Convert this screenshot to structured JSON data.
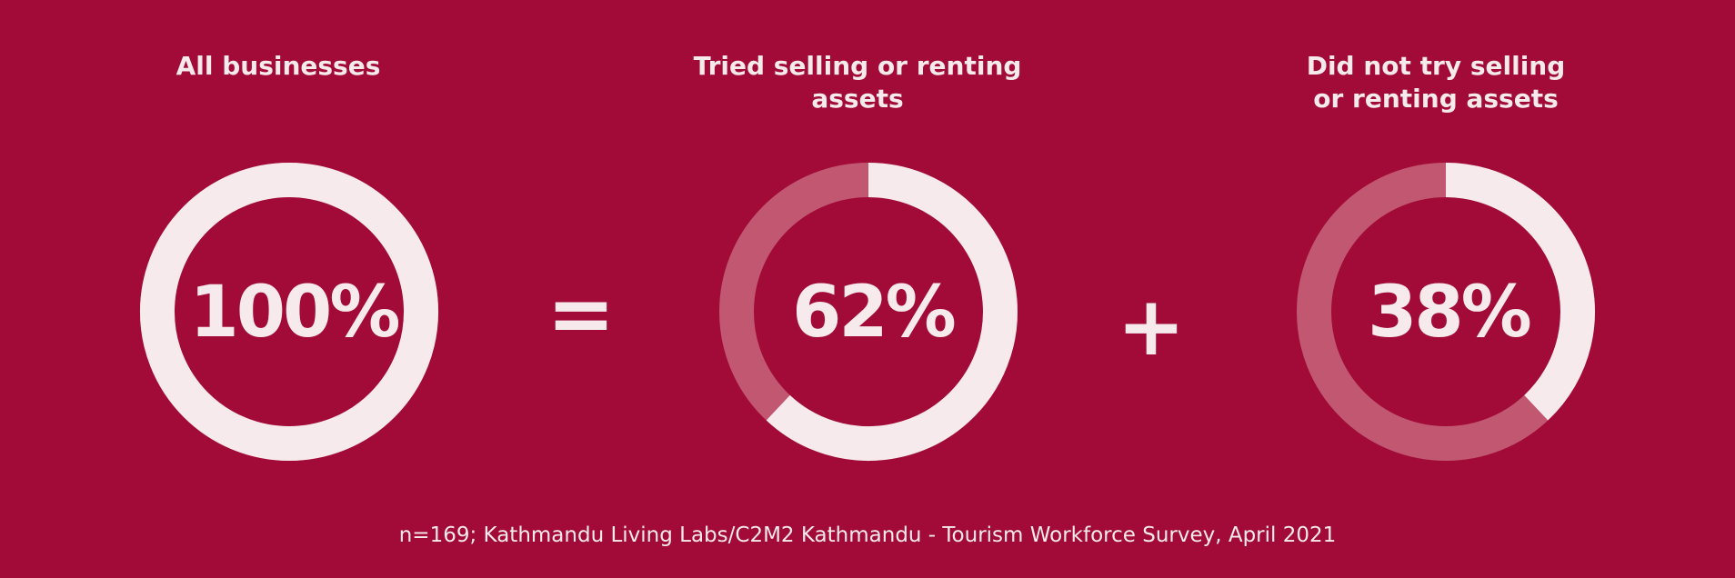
{
  "chart_data": {
    "type": "pie",
    "style": "donut",
    "colors": {
      "background": "#a20b37",
      "highlight": "#f6eaed",
      "remainder": "#c15770",
      "text": "#f6eaed"
    },
    "charts": [
      {
        "title": [
          "All businesses"
        ],
        "value": 100,
        "label": "100%"
      },
      {
        "title": [
          "Tried selling or renting",
          "assets"
        ],
        "value": 62,
        "label": "62%"
      },
      {
        "title": [
          "Did not try selling",
          "or renting assets"
        ],
        "value": 38,
        "label": "38%"
      }
    ],
    "operators": [
      "=",
      "+"
    ],
    "source": "n=169; Kathmandu Living Labs/C2M2 Kathmandu - Tourism Workforce Survey, April 2021"
  }
}
